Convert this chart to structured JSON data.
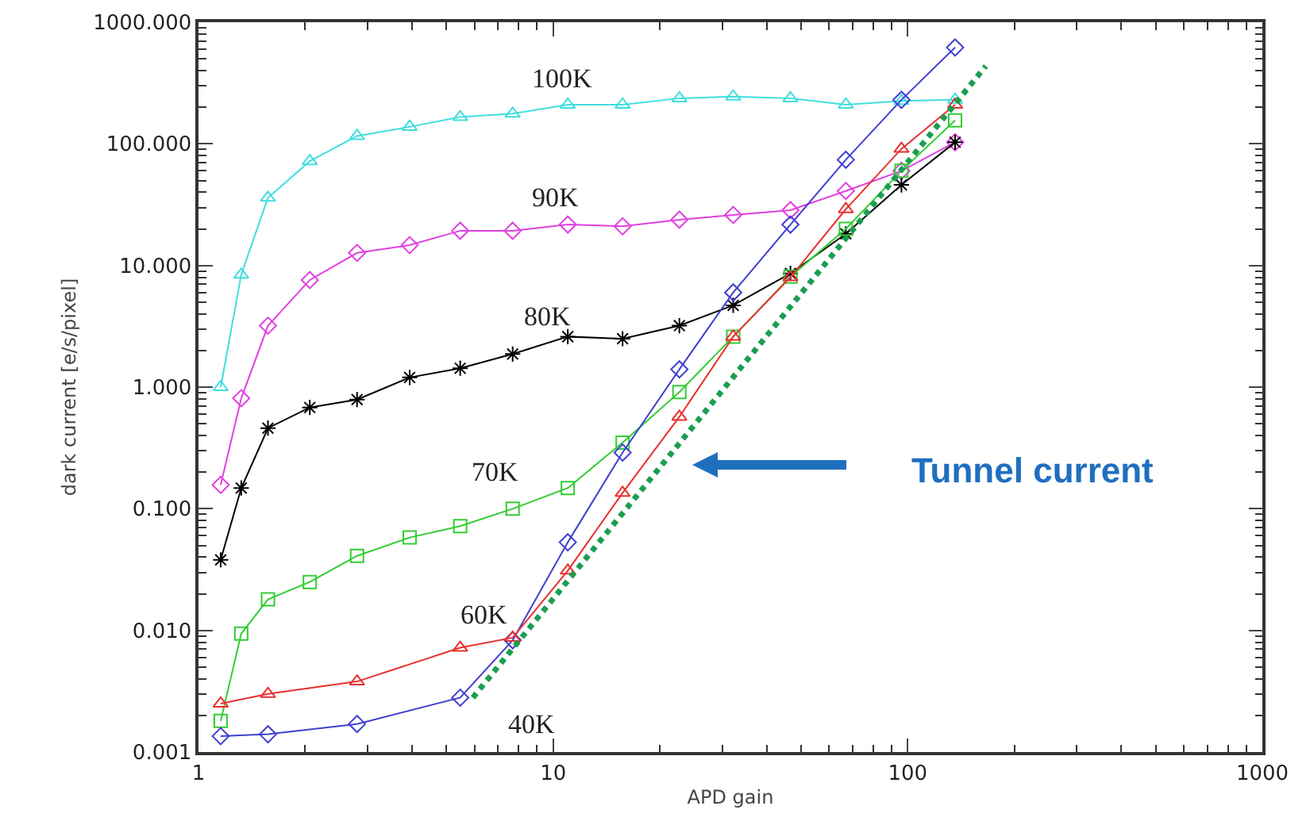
{
  "chart_data": {
    "type": "line",
    "xlabel": "APD gain",
    "ylabel": "dark current [e/s/pixel]",
    "log": "xy",
    "xlim": [
      1,
      1000
    ],
    "xticks": [
      1,
      10,
      100,
      1000
    ],
    "ylim": [
      0.001,
      1000
    ],
    "yticks": [
      0.001,
      {
        "value": 0.01,
        "label": "0.010"
      },
      {
        "value": 0.1,
        "label": "0.100"
      },
      {
        "value": 1,
        "label": "1.000"
      },
      {
        "value": 10,
        "label": "10.000"
      },
      {
        "value": 100,
        "label": "100.000"
      },
      {
        "value": 1000,
        "label": "1000.000"
      }
    ],
    "x": [
      1.155,
      1.32,
      1.57,
      2.06,
      2.8,
      3.94,
      5.47,
      7.69,
      11.0,
      15.7,
      22.7,
      32.2,
      46.7,
      66.9,
      96,
      136
    ],
    "series": [
      {
        "color": "#40dede",
        "marker": "triangle",
        "values": [
          1.0,
          8.4,
          36,
          72,
          116,
          138,
          166,
          177,
          210,
          210,
          237,
          245,
          237,
          210,
          225,
          230
        ]
      },
      {
        "color": "#e040e0",
        "marker": "diamond",
        "values": [
          0.157,
          0.81,
          3.2,
          7.6,
          12.7,
          14.7,
          19.3,
          19.3,
          21.7,
          21,
          23.8,
          26,
          28.5,
          41,
          60,
          103
        ]
      },
      {
        "color": "#000000",
        "marker": "cross",
        "values": [
          0.038,
          0.148,
          0.46,
          0.68,
          0.79,
          1.2,
          1.43,
          1.87,
          2.6,
          2.5,
          3.2,
          4.7,
          8.6,
          18.2,
          46,
          103
        ]
      },
      {
        "color": "#33cc33",
        "marker": "square",
        "values": [
          0.0018,
          0.0094,
          0.018,
          0.025,
          0.041,
          0.058,
          0.072,
          0.1,
          0.148,
          0.35,
          0.91,
          2.6,
          8.1,
          20,
          60,
          156
        ]
      },
      {
        "color": "#4040d0",
        "marker": "diamond",
        "x": [
          1.155,
          1.57,
          2.8,
          5.47,
          7.69,
          11.0,
          15.7,
          22.7,
          32.2,
          46.7,
          66.9,
          96,
          136
        ],
        "values": [
          0.00135,
          0.0014,
          0.0017,
          0.0028,
          0.0083,
          0.053,
          0.29,
          1.4,
          6.0,
          21.7,
          74,
          230,
          620
        ]
      },
      {
        "color": "#e83030",
        "marker": "triangle",
        "x": [
          1.155,
          1.57,
          2.8,
          5.47,
          7.69,
          11.0,
          15.7,
          22.7,
          32.2,
          46.7,
          66.9,
          96,
          136
        ],
        "values": [
          0.0025,
          0.003,
          0.0038,
          0.0072,
          0.0087,
          0.031,
          0.135,
          0.57,
          2.6,
          8,
          29,
          91,
          210
        ]
      },
      {
        "type": "line",
        "color": "#1a9e50",
        "marker": "none",
        "line_style": "dotted",
        "x": [
          5.94,
          166
        ],
        "values": [
          0.0028,
          436
        ]
      }
    ],
    "annotations": [
      "100K",
      "90K",
      "80K",
      "70K",
      "60K",
      "40K",
      "Tunnel current"
    ]
  }
}
